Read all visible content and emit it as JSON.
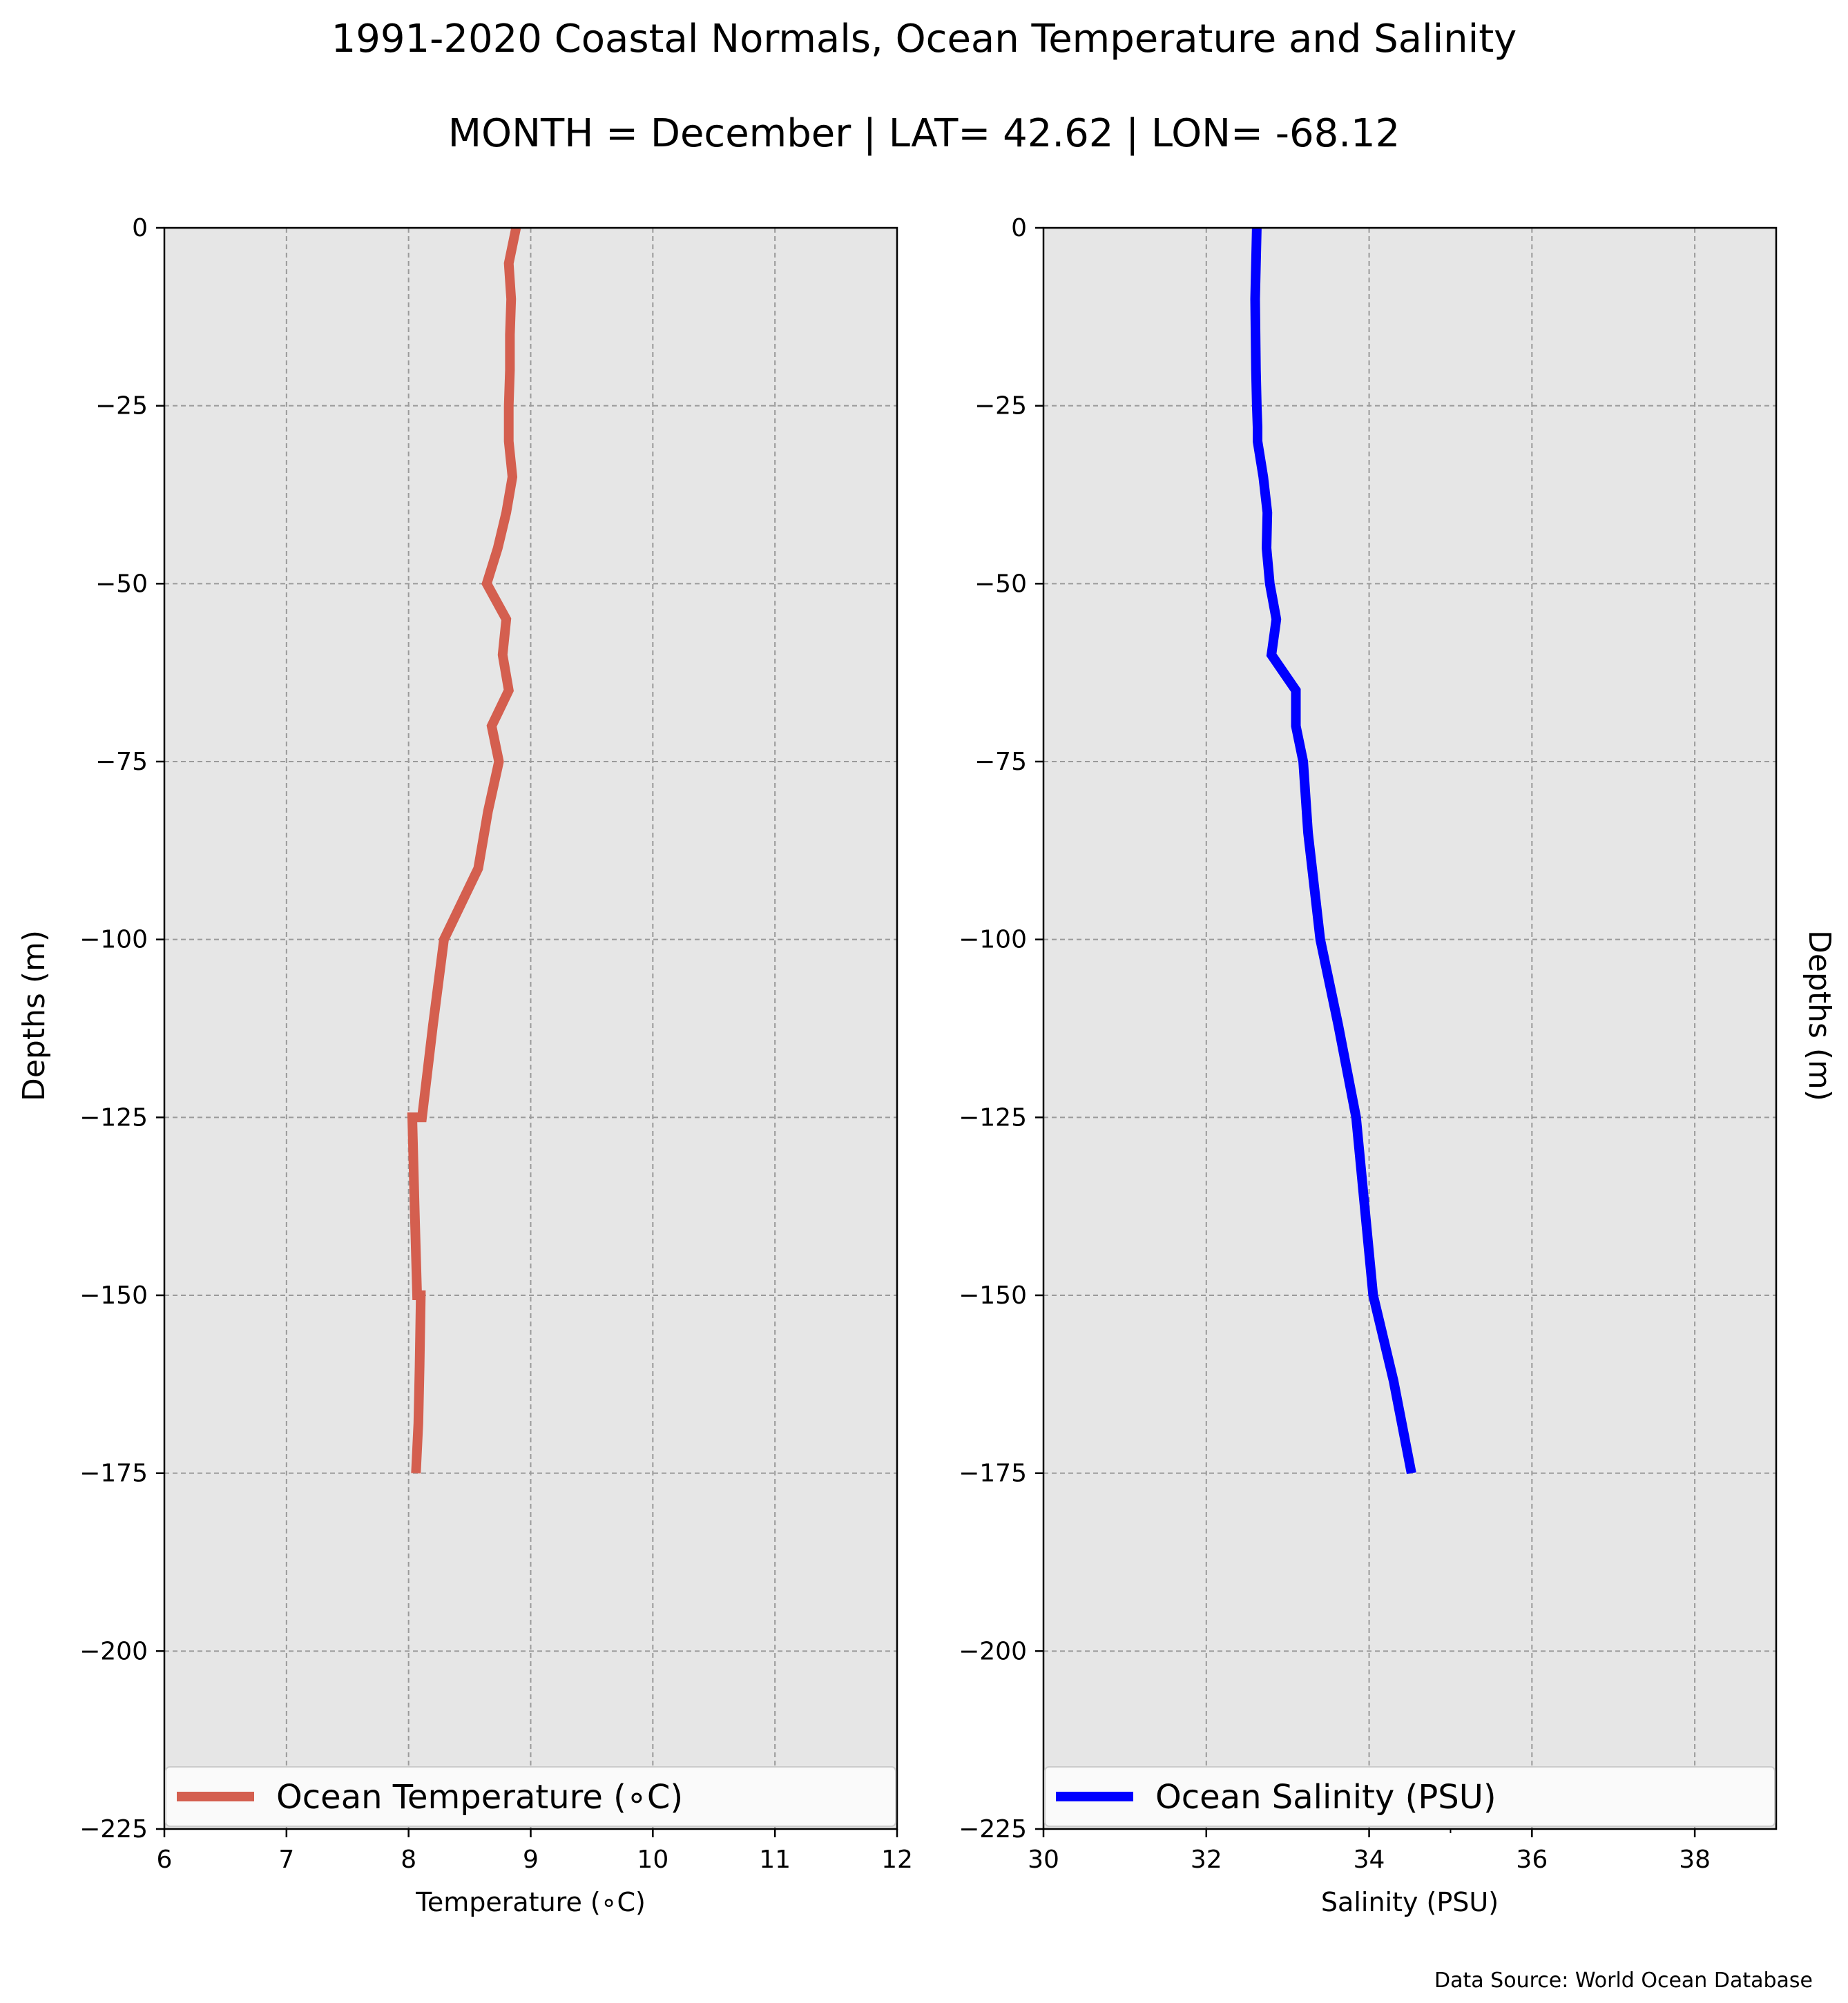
{
  "figure": {
    "title_line1": "1991-2020 Coastal Normals, Ocean Temperature and Salinity",
    "title_line2": "MONTH = December | LAT= 42.62 | LON= -68.12",
    "source": "Data Source: World Ocean Database",
    "plot_bg": "#e6e6e6"
  },
  "chart_data": [
    {
      "type": "line",
      "xlabel": "Temperature ($^\\circ$C)",
      "xlabel_display": "Temperature (∘C)",
      "ylabel": "Depths (m)",
      "xlim": [
        6,
        12
      ],
      "ylim": [
        -225,
        0
      ],
      "xticks": [
        6,
        7,
        8,
        9,
        10,
        11,
        12
      ],
      "yticks": [
        0,
        -25,
        -50,
        -75,
        -100,
        -125,
        -150,
        -175,
        -200,
        -225
      ],
      "ytick_labels": [
        "0",
        "−25",
        "−50",
        "−75",
        "−100",
        "−125",
        "−150",
        "−175",
        "−200",
        "−225"
      ],
      "grid": true,
      "legend_position": "bottom",
      "series": [
        {
          "name": "Ocean Temperature (∘C)",
          "color": "#d45f4f",
          "x": [
            8.88,
            8.82,
            8.84,
            8.83,
            8.83,
            8.82,
            8.82,
            8.85,
            8.8,
            8.73,
            8.64,
            8.8,
            8.77,
            8.82,
            8.68,
            8.74,
            8.65,
            8.57,
            8.43,
            8.29,
            8.2,
            8.11,
            8.03,
            8.05,
            8.07,
            8.1,
            8.09,
            8.08,
            8.06
          ],
          "y": [
            0,
            -5,
            -10,
            -15,
            -20,
            -25,
            -30,
            -35,
            -40,
            -45,
            -50,
            -55,
            -60,
            -65,
            -70,
            -75,
            -82,
            -90,
            -95,
            -100,
            -112,
            -125,
            -125,
            -138,
            -150,
            -150,
            -160,
            -168,
            -175
          ]
        }
      ]
    },
    {
      "type": "line",
      "xlabel": "Salinity (PSU)",
      "ylabel": "Depths (m)",
      "xlim": [
        30,
        39
      ],
      "ylim": [
        -225,
        0
      ],
      "xticks": [
        30,
        32,
        34,
        36,
        38
      ],
      "yticks": [
        0,
        -25,
        -50,
        -75,
        -100,
        -125,
        -150,
        -175,
        -200,
        -225
      ],
      "ytick_labels": [
        "0",
        "−25",
        "−50",
        "−75",
        "−100",
        "−125",
        "−150",
        "−175",
        "−200",
        "−225"
      ],
      "grid": true,
      "legend_position": "bottom",
      "series": [
        {
          "name": "Ocean Salinity (PSU)",
          "color": "#0000ff",
          "x": [
            32.62,
            32.61,
            32.6,
            32.61,
            32.62,
            32.63,
            32.63,
            32.7,
            32.75,
            32.74,
            32.78,
            32.86,
            32.8,
            33.1,
            33.1,
            33.19,
            33.25,
            33.35,
            33.4,
            33.62,
            33.84,
            34.05,
            34.3,
            34.52
          ],
          "y": [
            0,
            -5,
            -10,
            -20,
            -25,
            -28,
            -30,
            -35,
            -40,
            -45,
            -50,
            -55,
            -60,
            -65,
            -70,
            -75,
            -85,
            -95,
            -100,
            -112,
            -125,
            -150,
            -162,
            -175
          ]
        }
      ]
    }
  ]
}
